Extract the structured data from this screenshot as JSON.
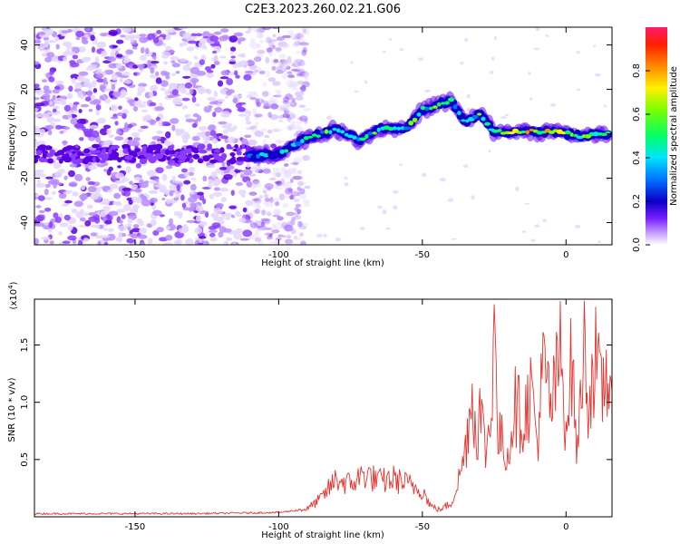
{
  "figure_title": "C2E3.2023.260.02.21.G06",
  "colors": {
    "snr_line": "#e8322e",
    "frame": "#000000",
    "colormap": [
      "#ffffff",
      "#d9c9ff",
      "#8a3cff",
      "#4b00d6",
      "#0a00c8",
      "#0072ff",
      "#00e5ff",
      "#00ff7a",
      "#7aff00",
      "#fff000",
      "#ff9a00",
      "#ff2000",
      "#ff1a6a"
    ]
  },
  "chart_data": [
    {
      "type": "heatmap",
      "title": "",
      "xlabel": "Height of straight line (km)",
      "ylabel": "Frequency (Hz)",
      "xlim": [
        -185,
        16
      ],
      "ylim": [
        -50,
        48
      ],
      "xticks": [
        -150,
        -100,
        -50,
        0
      ],
      "xtick_labels": [
        "-150",
        "-100",
        "-50",
        "0"
      ],
      "yticks": [
        -40,
        -20,
        0,
        20,
        40
      ],
      "ytick_labels": [
        "-40",
        "-20",
        "0",
        "20",
        "40"
      ],
      "colorbar": {
        "label": "Normalized spectral amplitude",
        "range": [
          0,
          1
        ],
        "ticks": [
          0.0,
          0.2,
          0.4,
          0.6,
          0.8
        ],
        "tick_labels": [
          "0.0",
          "0.2",
          "0.4",
          "0.6",
          "0.8"
        ]
      },
      "ridge": [
        {
          "x": -110,
          "y": -10,
          "v": 0.35
        },
        {
          "x": -100,
          "y": -9,
          "v": 0.42
        },
        {
          "x": -90,
          "y": -2,
          "v": 0.55
        },
        {
          "x": -80,
          "y": 2,
          "v": 0.6
        },
        {
          "x": -72,
          "y": -3,
          "v": 0.55
        },
        {
          "x": -65,
          "y": 2,
          "v": 0.55
        },
        {
          "x": -55,
          "y": 3,
          "v": 0.6
        },
        {
          "x": -50,
          "y": 11,
          "v": 0.6
        },
        {
          "x": -40,
          "y": 15,
          "v": 0.55
        },
        {
          "x": -35,
          "y": 5,
          "v": 0.5
        },
        {
          "x": -30,
          "y": 9,
          "v": 0.55
        },
        {
          "x": -25,
          "y": 1,
          "v": 0.6
        },
        {
          "x": -15,
          "y": 1,
          "v": 0.85
        },
        {
          "x": -5,
          "y": 1,
          "v": 0.9
        },
        {
          "x": 5,
          "y": -1,
          "v": 0.7
        },
        {
          "x": 15,
          "y": 0,
          "v": 0.6
        }
      ]
    },
    {
      "type": "line",
      "title": "",
      "xlabel": "Height of straight line (km)",
      "ylabel": "SNR (10 * v/v)",
      "y_multiplier_label": "(x10",
      "y_multiplier_exp": "4",
      "y_multiplier_close": ")",
      "xlim": [
        -185,
        16
      ],
      "ylim": [
        0,
        1.9
      ],
      "xticks": [
        -150,
        -100,
        -50,
        0
      ],
      "xtick_labels": [
        "-150",
        "-100",
        "-50",
        "0"
      ],
      "yticks": [
        0.5,
        1.0,
        1.5
      ],
      "ytick_labels": [
        "0.5",
        "1.0",
        "1.5"
      ],
      "series": [
        {
          "x": [
            -185,
            -160,
            -130,
            -100,
            -90,
            -85,
            -80,
            -75,
            -70,
            -65,
            -60,
            -55,
            -50,
            -47,
            -44,
            -40,
            -37,
            -35,
            -33,
            -31,
            -30,
            -28,
            -26,
            -25,
            -24,
            -22,
            -20,
            -18,
            -15,
            -12,
            -10,
            -8,
            -5,
            -2,
            0,
            2,
            4,
            6,
            8,
            10,
            12,
            14,
            16
          ],
          "y": [
            0.02,
            0.02,
            0.02,
            0.03,
            0.06,
            0.14,
            0.28,
            0.24,
            0.32,
            0.26,
            0.28,
            0.24,
            0.2,
            0.08,
            0.05,
            0.1,
            0.3,
            0.5,
            0.92,
            0.6,
            0.8,
            0.5,
            0.7,
            1.9,
            0.6,
            0.55,
            0.45,
            0.85,
            0.7,
            0.95,
            0.55,
            1.1,
            0.8,
            1.2,
            0.7,
            1.15,
            0.45,
            1.3,
            0.85,
            1.2,
            0.9,
            1.05,
            1.1
          ]
        }
      ]
    }
  ]
}
